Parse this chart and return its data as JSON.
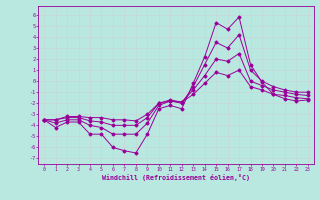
{
  "xlabel": "Windchill (Refroidissement éolien,°C)",
  "bg_color": "#b8e8e0",
  "line_color": "#990099",
  "grid_color": "#c8d8d8",
  "xlim": [
    -0.5,
    23.5
  ],
  "ylim": [
    -7.5,
    6.8
  ],
  "xticks": [
    0,
    1,
    2,
    3,
    4,
    5,
    6,
    7,
    8,
    9,
    10,
    11,
    12,
    13,
    14,
    15,
    16,
    17,
    18,
    19,
    20,
    21,
    22,
    23
  ],
  "yticks": [
    -7,
    -6,
    -5,
    -4,
    -3,
    -2,
    -1,
    0,
    1,
    2,
    3,
    4,
    5,
    6
  ],
  "line1_x": [
    0,
    1,
    2,
    3,
    4,
    5,
    6,
    7,
    8,
    9,
    10,
    11,
    12,
    13,
    14,
    15,
    16,
    17,
    18,
    19,
    20,
    21,
    22,
    23
  ],
  "line1_y": [
    -3.5,
    -4.2,
    -3.7,
    -3.7,
    -4.8,
    -4.8,
    -6.0,
    -6.3,
    -6.5,
    -4.8,
    -2.5,
    -2.2,
    -2.5,
    -0.2,
    2.2,
    5.3,
    4.7,
    5.8,
    1.5,
    -0.1,
    -1.2,
    -1.6,
    -1.8,
    -1.7
  ],
  "line2_x": [
    0,
    1,
    2,
    3,
    4,
    5,
    6,
    7,
    8,
    9,
    10,
    11,
    12,
    13,
    14,
    15,
    16,
    17,
    18,
    19,
    20,
    21,
    22,
    23
  ],
  "line2_y": [
    -3.5,
    -3.8,
    -3.5,
    -3.5,
    -4.0,
    -4.2,
    -4.8,
    -4.8,
    -4.8,
    -3.8,
    -2.2,
    -1.8,
    -2.0,
    -0.5,
    1.5,
    3.5,
    3.0,
    4.2,
    1.0,
    0.0,
    -0.5,
    -0.8,
    -1.0,
    -1.0
  ],
  "line3_x": [
    0,
    1,
    2,
    3,
    4,
    5,
    6,
    7,
    8,
    9,
    10,
    11,
    12,
    13,
    14,
    15,
    16,
    17,
    18,
    19,
    20,
    21,
    22,
    23
  ],
  "line3_y": [
    -3.5,
    -3.5,
    -3.3,
    -3.3,
    -3.6,
    -3.7,
    -4.0,
    -4.0,
    -4.0,
    -3.3,
    -2.0,
    -1.7,
    -1.9,
    -0.8,
    0.5,
    2.0,
    1.8,
    2.5,
    0.0,
    -0.4,
    -0.8,
    -1.0,
    -1.2,
    -1.3
  ],
  "line4_x": [
    0,
    1,
    2,
    3,
    4,
    5,
    6,
    7,
    8,
    9,
    10,
    11,
    12,
    13,
    14,
    15,
    16,
    17,
    18,
    19,
    20,
    21,
    22,
    23
  ],
  "line4_y": [
    -3.5,
    -3.5,
    -3.2,
    -3.2,
    -3.3,
    -3.3,
    -3.5,
    -3.5,
    -3.6,
    -3.0,
    -2.0,
    -1.8,
    -1.9,
    -1.2,
    -0.2,
    0.8,
    0.5,
    1.0,
    -0.5,
    -0.8,
    -1.2,
    -1.3,
    -1.5,
    -1.6
  ]
}
